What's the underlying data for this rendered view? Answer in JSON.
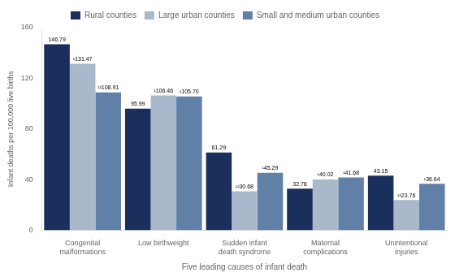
{
  "chart_data": {
    "type": "bar",
    "xlabel": "Five leading causes of infant death",
    "ylabel": "Infant deaths per 100,000 live births",
    "categories": [
      "Congenital\nmalformations",
      "Low birthweight",
      "Sudden infant\ndeath syndrome",
      "Maternal\ncomplications",
      "Unintentional\ninjuries"
    ],
    "series": [
      {
        "name": "Rural counties",
        "color": "#1b2f5c",
        "values": [
          146.79,
          95.99,
          61.29,
          32.78,
          43.15
        ],
        "value_labels": [
          "146.79",
          "95.99",
          "61.29",
          "32.78",
          "43.15"
        ]
      },
      {
        "name": "Large urban counties",
        "color": "#aab8cc",
        "values": [
          131.47,
          106.46,
          30.68,
          40.02,
          23.76
        ],
        "value_labels": [
          "¹131.47",
          "¹106.46",
          "¹²30.68",
          "¹40.02",
          "¹²23.76"
        ]
      },
      {
        "name": "Small and medium urban counties",
        "color": "#6080a8",
        "values": [
          108.91,
          105.7,
          45.29,
          41.68,
          36.64
        ],
        "value_labels": [
          "¹²108.91",
          "¹105.70",
          "¹45.29",
          "¹41.68",
          "¹36.64"
        ]
      }
    ],
    "ylim": [
      0,
      160
    ],
    "yticks": [
      0,
      40,
      80,
      120,
      160
    ],
    "grid": false,
    "legend": "top",
    "data_labels": true
  }
}
